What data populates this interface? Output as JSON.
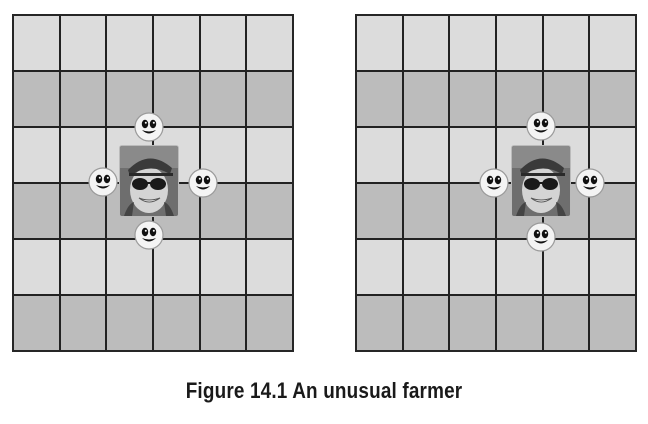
{
  "figure": {
    "caption": "Figure 14.1 An unusual farmer"
  },
  "grids": [
    {
      "rows": 6,
      "cols": 6,
      "row_shades": [
        "light",
        "dark",
        "light",
        "dark",
        "light",
        "dark"
      ],
      "farmer": {
        "depiction": "smiling woman wearing cap and sunglasses"
      },
      "neighbors": [
        "smiley-icon",
        "smiley-icon",
        "smiley-icon",
        "smiley-icon"
      ]
    },
    {
      "rows": 6,
      "cols": 6,
      "row_shades": [
        "light",
        "dark",
        "light",
        "dark",
        "light",
        "dark"
      ],
      "farmer": {
        "depiction": "smiling woman wearing cap and sunglasses"
      },
      "neighbors": [
        "smiley-icon",
        "smiley-icon",
        "smiley-icon",
        "smiley-icon"
      ]
    }
  ],
  "colors": {
    "light_cell": "#dcdcdc",
    "dark_cell": "#bcbcbc",
    "grid_lines": "#222222"
  }
}
